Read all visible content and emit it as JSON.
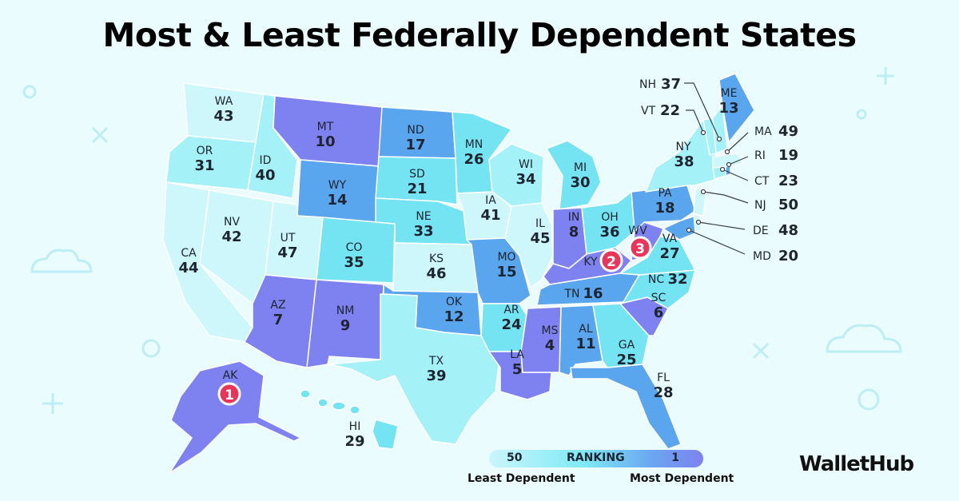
{
  "title": "Most & Least Federally Dependent States",
  "brand": "WalletHub",
  "legend": {
    "low_value": "50",
    "label": "RANKING",
    "high_value": "1",
    "left_caption": "Least Dependent",
    "right_caption": "Most Dependent"
  },
  "colors": {
    "background": "#eafcfd",
    "tier_most": "#7d82f0",
    "tier_high": "#5aa6ee",
    "tier_mid": "#74e4f3",
    "tier_low": "#a5f1f8",
    "tier_least": "#cdf7fb",
    "badge": "#e8365a"
  },
  "states": [
    {
      "abbr": "WA",
      "rank": "43"
    },
    {
      "abbr": "OR",
      "rank": "31"
    },
    {
      "abbr": "CA",
      "rank": "44"
    },
    {
      "abbr": "ID",
      "rank": "40"
    },
    {
      "abbr": "NV",
      "rank": "42"
    },
    {
      "abbr": "MT",
      "rank": "10"
    },
    {
      "abbr": "WY",
      "rank": "14"
    },
    {
      "abbr": "UT",
      "rank": "47"
    },
    {
      "abbr": "AZ",
      "rank": "7"
    },
    {
      "abbr": "CO",
      "rank": "35"
    },
    {
      "abbr": "NM",
      "rank": "9"
    },
    {
      "abbr": "ND",
      "rank": "17"
    },
    {
      "abbr": "SD",
      "rank": "21"
    },
    {
      "abbr": "NE",
      "rank": "33"
    },
    {
      "abbr": "KS",
      "rank": "46"
    },
    {
      "abbr": "OK",
      "rank": "12"
    },
    {
      "abbr": "TX",
      "rank": "39"
    },
    {
      "abbr": "MN",
      "rank": "26"
    },
    {
      "abbr": "IA",
      "rank": "41"
    },
    {
      "abbr": "MO",
      "rank": "15"
    },
    {
      "abbr": "AR",
      "rank": "24"
    },
    {
      "abbr": "LA",
      "rank": "5"
    },
    {
      "abbr": "WI",
      "rank": "34"
    },
    {
      "abbr": "IL",
      "rank": "45"
    },
    {
      "abbr": "MI",
      "rank": "30"
    },
    {
      "abbr": "IN",
      "rank": "8"
    },
    {
      "abbr": "OH",
      "rank": "36"
    },
    {
      "abbr": "KY",
      "rank": "2"
    },
    {
      "abbr": "TN",
      "rank": "16"
    },
    {
      "abbr": "MS",
      "rank": "4"
    },
    {
      "abbr": "AL",
      "rank": "11"
    },
    {
      "abbr": "GA",
      "rank": "25"
    },
    {
      "abbr": "FL",
      "rank": "28"
    },
    {
      "abbr": "SC",
      "rank": "6"
    },
    {
      "abbr": "NC",
      "rank": "32"
    },
    {
      "abbr": "VA",
      "rank": "27"
    },
    {
      "abbr": "WV",
      "rank": "3"
    },
    {
      "abbr": "PA",
      "rank": "18"
    },
    {
      "abbr": "NY",
      "rank": "38"
    },
    {
      "abbr": "ME",
      "rank": "13"
    },
    {
      "abbr": "AK",
      "rank": "1"
    },
    {
      "abbr": "HI",
      "rank": "29"
    },
    {
      "abbr": "NH",
      "rank": "37"
    },
    {
      "abbr": "VT",
      "rank": "22"
    },
    {
      "abbr": "MA",
      "rank": "49"
    },
    {
      "abbr": "RI",
      "rank": "19"
    },
    {
      "abbr": "CT",
      "rank": "23"
    },
    {
      "abbr": "NJ",
      "rank": "50"
    },
    {
      "abbr": "DE",
      "rank": "48"
    },
    {
      "abbr": "MD",
      "rank": "20"
    }
  ]
}
